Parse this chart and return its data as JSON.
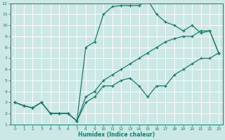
{
  "background_color": "#cce8e4",
  "grid_color": "#ffffff",
  "line_color": "#1a7a6e",
  "xlabel": "Humidex (Indice chaleur)",
  "xlim": [
    -0.5,
    23.5
  ],
  "ylim": [
    1,
    12
  ],
  "xticks": [
    0,
    1,
    2,
    3,
    4,
    5,
    6,
    7,
    8,
    9,
    10,
    11,
    12,
    13,
    14,
    15,
    16,
    17,
    18,
    19,
    20,
    21,
    22,
    23
  ],
  "yticks": [
    1,
    2,
    3,
    4,
    5,
    6,
    7,
    8,
    9,
    10,
    11,
    12
  ],
  "curve1_x": [
    0,
    1,
    2,
    3,
    4,
    5,
    6,
    7,
    8,
    9,
    10,
    11,
    12,
    13,
    14,
    15,
    16,
    17,
    18,
    19,
    20,
    21,
    22,
    23
  ],
  "curve1_y": [
    3,
    2.7,
    2.5,
    3.0,
    2.0,
    2.0,
    2.0,
    1.3,
    3.0,
    3.5,
    4.5,
    4.5,
    5.0,
    5.2,
    4.5,
    3.5,
    4.5,
    4.5,
    5.5,
    6.0,
    6.5,
    7.0,
    7.0,
    7.5
  ],
  "curve2_x": [
    0,
    1,
    2,
    3,
    4,
    5,
    6,
    7,
    8,
    9,
    10,
    11,
    12,
    13,
    14,
    15,
    16,
    17,
    18,
    19,
    20,
    21,
    22,
    23
  ],
  "curve2_y": [
    3,
    2.7,
    2.5,
    3.0,
    2.0,
    2.0,
    2.0,
    1.3,
    8.0,
    8.5,
    11.0,
    11.7,
    11.8,
    11.8,
    11.8,
    12.3,
    11.0,
    10.3,
    10.0,
    9.5,
    10.0,
    9.3,
    9.5,
    7.5
  ],
  "curve3_x": [
    0,
    1,
    2,
    3,
    4,
    5,
    6,
    7,
    8,
    9,
    10,
    11,
    12,
    13,
    14,
    15,
    16,
    17,
    18,
    19,
    20,
    21,
    22,
    23
  ],
  "curve3_y": [
    3,
    2.7,
    2.5,
    3.0,
    2.0,
    2.0,
    2.0,
    1.3,
    3.5,
    4.0,
    5.0,
    5.5,
    6.0,
    6.5,
    7.0,
    7.5,
    8.0,
    8.5,
    8.8,
    9.0,
    9.0,
    9.5,
    9.5,
    7.5
  ]
}
